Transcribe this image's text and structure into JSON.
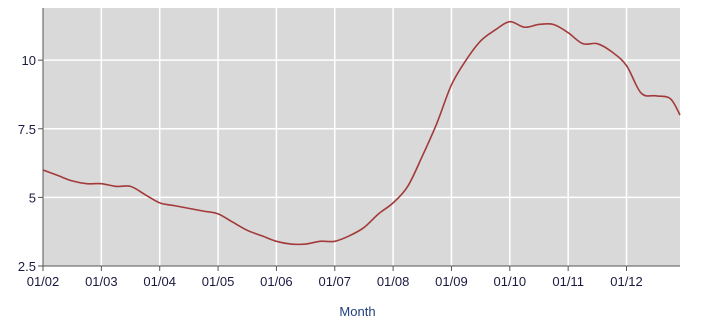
{
  "chart_data": {
    "type": "line",
    "title": "",
    "xlabel": "Month",
    "ylabel": "",
    "grid": true,
    "colors": {
      "plot_background": "#d9d9d9",
      "grid": "#ffffff",
      "line": "#a33a3a",
      "axis_text": "#1a1a40",
      "axis_title": "#1f3f7a"
    },
    "xlim": [
      "2002-01",
      "2012-12"
    ],
    "ylim": [
      2.5,
      11.9
    ],
    "x_ticks": [
      "01/02",
      "01/03",
      "01/04",
      "01/05",
      "01/06",
      "01/07",
      "01/08",
      "01/09",
      "01/10",
      "01/11",
      "01/12"
    ],
    "y_ticks": [
      "2.5",
      "5",
      "7.5",
      "10"
    ],
    "series": [
      {
        "name": "",
        "x": [
          "2002-01",
          "2002-04",
          "2002-07",
          "2002-10",
          "2003-01",
          "2003-04",
          "2003-07",
          "2003-10",
          "2004-01",
          "2004-04",
          "2004-07",
          "2004-10",
          "2005-01",
          "2005-04",
          "2005-07",
          "2005-10",
          "2006-01",
          "2006-04",
          "2006-07",
          "2006-10",
          "2007-01",
          "2007-04",
          "2007-07",
          "2007-10",
          "2008-01",
          "2008-04",
          "2008-07",
          "2008-10",
          "2009-01",
          "2009-04",
          "2009-07",
          "2009-10",
          "2010-01",
          "2010-04",
          "2010-07",
          "2010-10",
          "2011-01",
          "2011-04",
          "2011-07",
          "2011-10",
          "2012-01",
          "2012-04",
          "2012-07",
          "2012-10",
          "2012-12"
        ],
        "y": [
          6.0,
          5.8,
          5.6,
          5.5,
          5.5,
          5.4,
          5.4,
          5.1,
          4.8,
          4.7,
          4.6,
          4.5,
          4.4,
          4.1,
          3.8,
          3.6,
          3.4,
          3.3,
          3.3,
          3.4,
          3.4,
          3.6,
          3.9,
          4.4,
          4.8,
          5.4,
          6.5,
          7.7,
          9.1,
          10.0,
          10.7,
          11.1,
          11.4,
          11.2,
          11.3,
          11.3,
          11.0,
          10.6,
          10.6,
          10.3,
          9.8,
          8.8,
          8.7,
          8.6,
          8.0
        ]
      }
    ]
  }
}
